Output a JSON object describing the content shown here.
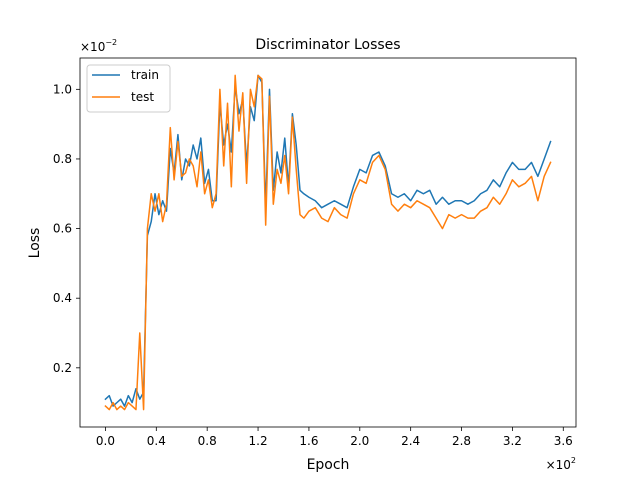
{
  "chart_data": {
    "type": "line",
    "title": "Discriminator Losses",
    "xlabel": "Epoch",
    "ylabel": "Loss",
    "x_multiplier": "×10",
    "x_multiplier_exp": "2",
    "y_multiplier": "×10",
    "y_multiplier_exp": "−2",
    "xlim": [
      -0.2,
      3.7
    ],
    "ylim": [
      0.03,
      1.09
    ],
    "xticks": [
      0.0,
      0.4,
      0.8,
      1.2,
      1.6,
      2.0,
      2.4,
      2.8,
      3.2,
      3.6
    ],
    "xtick_labels": [
      "0.0",
      "0.4",
      "0.8",
      "1.2",
      "1.6",
      "2.0",
      "2.4",
      "2.8",
      "3.2",
      "3.6"
    ],
    "yticks": [
      0.2,
      0.4,
      0.6,
      0.8,
      1.0
    ],
    "ytick_labels": [
      "0.2",
      "0.4",
      "0.6",
      "0.8",
      "1.0"
    ],
    "legend_position": "top-left",
    "series": [
      {
        "name": "train",
        "color": "#1f77b4",
        "x": [
          0.0,
          0.03,
          0.06,
          0.09,
          0.12,
          0.15,
          0.18,
          0.21,
          0.24,
          0.27,
          0.3,
          0.33,
          0.36,
          0.39,
          0.42,
          0.45,
          0.48,
          0.51,
          0.54,
          0.57,
          0.6,
          0.63,
          0.66,
          0.69,
          0.72,
          0.75,
          0.78,
          0.81,
          0.84,
          0.87,
          0.9,
          0.93,
          0.96,
          0.99,
          1.02,
          1.05,
          1.08,
          1.11,
          1.14,
          1.17,
          1.2,
          1.23,
          1.26,
          1.29,
          1.32,
          1.35,
          1.38,
          1.41,
          1.44,
          1.47,
          1.5,
          1.53,
          1.56,
          1.6,
          1.65,
          1.7,
          1.75,
          1.8,
          1.85,
          1.9,
          1.95,
          2.0,
          2.05,
          2.1,
          2.15,
          2.2,
          2.25,
          2.3,
          2.35,
          2.4,
          2.45,
          2.5,
          2.55,
          2.6,
          2.65,
          2.7,
          2.75,
          2.8,
          2.85,
          2.9,
          2.95,
          3.0,
          3.05,
          3.1,
          3.15,
          3.2,
          3.25,
          3.3,
          3.35,
          3.4,
          3.45,
          3.5
        ],
        "values": [
          0.11,
          0.12,
          0.09,
          0.1,
          0.11,
          0.09,
          0.12,
          0.1,
          0.14,
          0.11,
          0.13,
          0.58,
          0.62,
          0.7,
          0.64,
          0.68,
          0.65,
          0.83,
          0.76,
          0.87,
          0.74,
          0.8,
          0.78,
          0.84,
          0.8,
          0.86,
          0.73,
          0.77,
          0.68,
          0.68,
          0.96,
          0.84,
          0.9,
          0.82,
          1.01,
          0.93,
          0.97,
          0.78,
          0.95,
          0.91,
          1.04,
          1.02,
          0.66,
          1.0,
          0.71,
          0.82,
          0.76,
          0.86,
          0.72,
          0.93,
          0.84,
          0.71,
          0.7,
          0.69,
          0.68,
          0.66,
          0.67,
          0.68,
          0.67,
          0.66,
          0.72,
          0.77,
          0.76,
          0.81,
          0.82,
          0.78,
          0.7,
          0.69,
          0.7,
          0.68,
          0.71,
          0.7,
          0.71,
          0.67,
          0.69,
          0.67,
          0.68,
          0.68,
          0.67,
          0.68,
          0.7,
          0.71,
          0.74,
          0.72,
          0.76,
          0.79,
          0.77,
          0.77,
          0.79,
          0.75,
          0.8,
          0.85
        ]
      },
      {
        "name": "test",
        "color": "#ff7f0e",
        "x": [
          0.0,
          0.03,
          0.06,
          0.09,
          0.12,
          0.15,
          0.18,
          0.21,
          0.24,
          0.27,
          0.3,
          0.33,
          0.36,
          0.39,
          0.42,
          0.45,
          0.48,
          0.51,
          0.54,
          0.57,
          0.6,
          0.63,
          0.66,
          0.69,
          0.72,
          0.75,
          0.78,
          0.81,
          0.84,
          0.87,
          0.9,
          0.93,
          0.96,
          0.99,
          1.02,
          1.05,
          1.08,
          1.11,
          1.14,
          1.17,
          1.2,
          1.23,
          1.26,
          1.29,
          1.32,
          1.35,
          1.38,
          1.41,
          1.44,
          1.47,
          1.5,
          1.53,
          1.56,
          1.6,
          1.65,
          1.7,
          1.75,
          1.8,
          1.85,
          1.9,
          1.95,
          2.0,
          2.05,
          2.1,
          2.15,
          2.2,
          2.25,
          2.3,
          2.35,
          2.4,
          2.45,
          2.5,
          2.55,
          2.6,
          2.65,
          2.7,
          2.75,
          2.8,
          2.85,
          2.9,
          2.95,
          3.0,
          3.05,
          3.1,
          3.15,
          3.2,
          3.25,
          3.3,
          3.35,
          3.4,
          3.45,
          3.5
        ],
        "values": [
          0.09,
          0.08,
          0.1,
          0.08,
          0.09,
          0.08,
          0.1,
          0.09,
          0.08,
          0.3,
          0.08,
          0.6,
          0.7,
          0.65,
          0.7,
          0.62,
          0.67,
          0.89,
          0.74,
          0.85,
          0.75,
          0.76,
          0.8,
          0.78,
          0.72,
          0.82,
          0.7,
          0.74,
          0.66,
          0.7,
          1.0,
          0.78,
          0.96,
          0.72,
          1.04,
          0.88,
          0.99,
          0.73,
          1.0,
          0.95,
          1.04,
          1.03,
          0.61,
          0.98,
          0.67,
          0.77,
          0.73,
          0.81,
          0.7,
          0.92,
          0.77,
          0.64,
          0.63,
          0.65,
          0.66,
          0.63,
          0.62,
          0.66,
          0.64,
          0.63,
          0.7,
          0.74,
          0.73,
          0.79,
          0.81,
          0.77,
          0.67,
          0.65,
          0.67,
          0.66,
          0.68,
          0.67,
          0.66,
          0.63,
          0.6,
          0.64,
          0.63,
          0.64,
          0.63,
          0.63,
          0.65,
          0.66,
          0.69,
          0.67,
          0.7,
          0.74,
          0.72,
          0.73,
          0.75,
          0.68,
          0.75,
          0.79
        ]
      }
    ]
  }
}
